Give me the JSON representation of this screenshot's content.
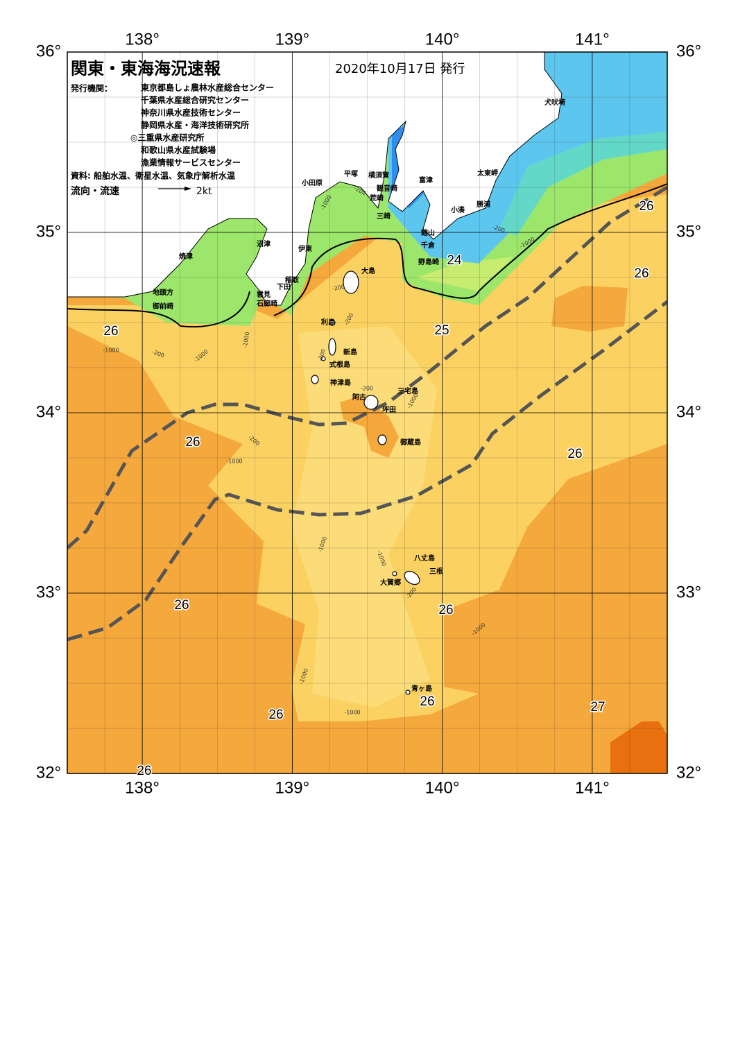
{
  "header": {
    "title": "関東・東海海況速報",
    "date": "2020年10月17日 発行",
    "issuer_label": "発行機関：",
    "issuers": [
      "東京都島しょ農林水産総合センター",
      "千葉県水産総合研究センター",
      "神奈川県水産技術センター",
      "静岡県水産・海洋技術研究所",
      "◎三重県水産研究所",
      "和歌山県水産試験場",
      "漁業情報サービスセンター"
    ],
    "source": "資料: 船舶水温、衛星水温、気象庁解析水温",
    "legend_label": "流向・流速",
    "legend_scale": "2kt"
  },
  "map": {
    "xlim": [
      137.5,
      141.5
    ],
    "ylim": [
      32,
      36
    ],
    "xticks": [
      {
        "value": 138,
        "label": "138°"
      },
      {
        "value": 139,
        "label": "139°"
      },
      {
        "value": 140,
        "label": "140°"
      },
      {
        "value": 141,
        "label": "141°"
      }
    ],
    "yticks": [
      {
        "value": 32,
        "label": "32°"
      },
      {
        "value": 33,
        "label": "33°"
      },
      {
        "value": 34,
        "label": "34°"
      },
      {
        "value": 35,
        "label": "35°"
      },
      {
        "value": 36,
        "label": "36°"
      }
    ],
    "places": [
      "犬吠埼",
      "富津",
      "太東岬",
      "平塚",
      "横須賀",
      "小田原",
      "観音崎",
      "荒崎",
      "勝浦",
      "小湊",
      "三崎",
      "館山",
      "千倉",
      "沼津",
      "伊東",
      "焼津",
      "野島崎",
      "大島",
      "稲取",
      "下田",
      "雲見",
      "地頭方",
      "石廊崎",
      "御前崎",
      "利島",
      "新島",
      "式根島",
      "神津島",
      "阿古",
      "三宅島",
      "坪田",
      "御蔵島",
      "八丈島",
      "三根",
      "大賀郷",
      "青ヶ島"
    ],
    "temperature_labels": [
      26,
      26,
      24,
      25,
      26,
      26,
      26,
      26,
      26,
      26,
      26,
      27,
      26
    ],
    "depth_labels": [
      -200,
      -1000,
      -200,
      -1000,
      -200,
      -200,
      -1000,
      -1000,
      -200,
      -1000,
      -200,
      -1000,
      -200,
      -200,
      -1000,
      -1000,
      -1000,
      -200,
      -1000,
      -1000,
      -1000
    ]
  }
}
